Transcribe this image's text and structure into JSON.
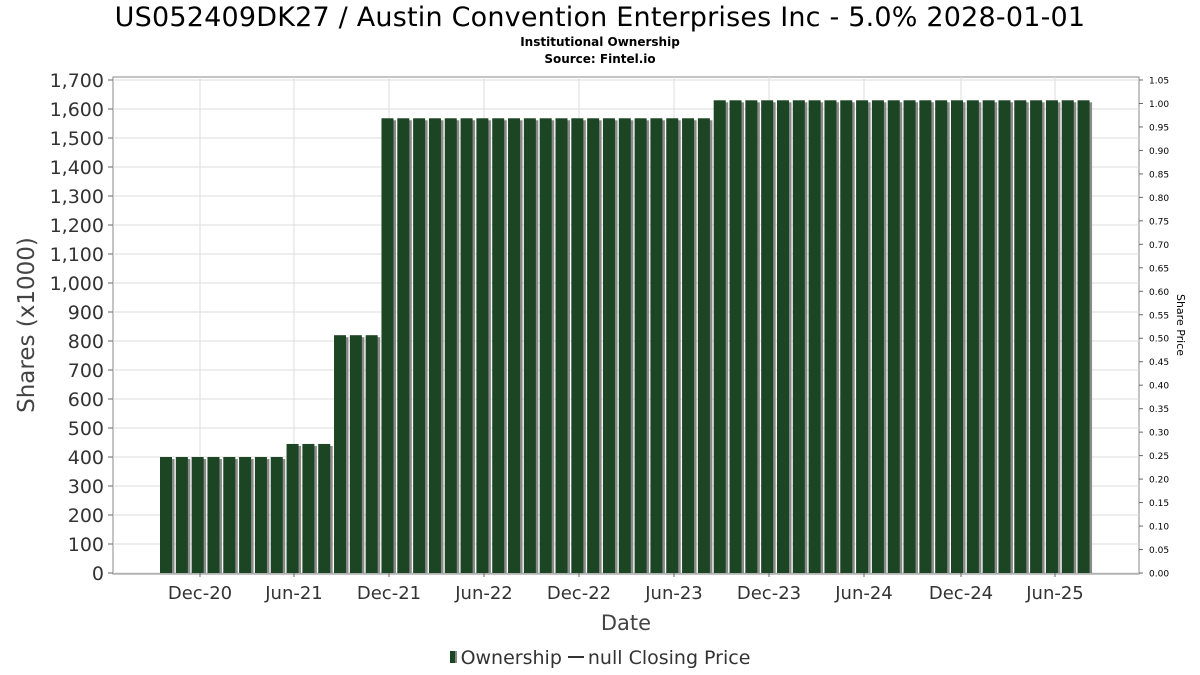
{
  "chart_data": {
    "type": "bar",
    "title": "US052409DK27 / Austin Convention Enterprises Inc - 5.0% 2028-01-01",
    "subtitle": [
      "Institutional Ownership",
      "Source: Fintel.io"
    ],
    "xlabel": "Date",
    "ylabel": "Shares (x1000)",
    "y2label": "Share Price",
    "ylim": [
      0,
      1700
    ],
    "y2lim": [
      0,
      1.05
    ],
    "yticks": [
      "0",
      "100",
      "200",
      "300",
      "400",
      "500",
      "600",
      "700",
      "800",
      "900",
      "1,000",
      "1,100",
      "1,200",
      "1,300",
      "1,400",
      "1,500",
      "1,600",
      "1,700"
    ],
    "y2ticks": [
      "0.00",
      "0.05",
      "0.10",
      "0.15",
      "0.20",
      "0.25",
      "0.30",
      "0.35",
      "0.40",
      "0.45",
      "0.50",
      "0.55",
      "0.60",
      "0.65",
      "0.70",
      "0.75",
      "0.80",
      "0.85",
      "0.90",
      "0.95",
      "1.00",
      "1.05"
    ],
    "xticks": [
      "Dec-20",
      "Jun-21",
      "Dec-21",
      "Jun-22",
      "Dec-22",
      "Jun-23",
      "Dec-23",
      "Jun-24",
      "Dec-24",
      "Jun-25"
    ],
    "grid": true,
    "legend_position": "bottom",
    "series": [
      {
        "name": "Ownership",
        "color": "#1b4523",
        "values": [
          400,
          400,
          400,
          400,
          400,
          400,
          400,
          400,
          445,
          445,
          445,
          820,
          820,
          820,
          1568,
          1568,
          1568,
          1568,
          1568,
          1568,
          1568,
          1568,
          1568,
          1568,
          1568,
          1568,
          1568,
          1568,
          1568,
          1568,
          1568,
          1568,
          1568,
          1568,
          1568,
          1630,
          1630,
          1630,
          1630,
          1630,
          1630,
          1630,
          1630,
          1630,
          1630,
          1630,
          1630,
          1630,
          1630,
          1630,
          1630,
          1630,
          1630,
          1630,
          1630,
          1630,
          1630,
          1630,
          1630
        ]
      },
      {
        "name": "null Closing Price",
        "color": "#333333",
        "values": []
      }
    ]
  }
}
